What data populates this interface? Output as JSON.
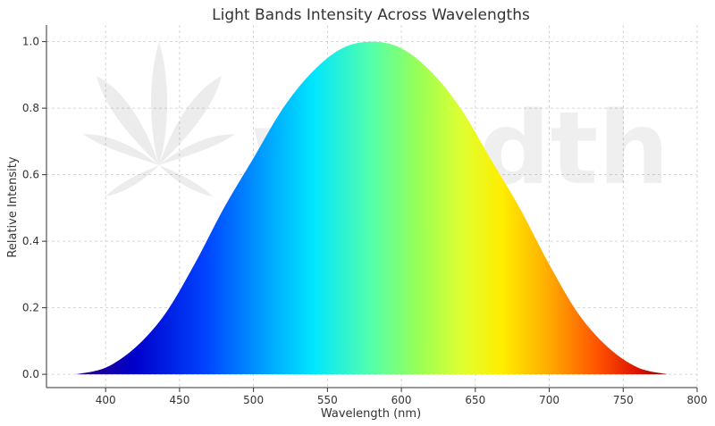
{
  "chart_data": {
    "type": "area",
    "title": "Light Bands Intensity Across Wavelengths",
    "xlabel": "Wavelength (nm)",
    "ylabel": "Relative Intensity",
    "xlim": [
      360,
      800
    ],
    "ylim": [
      -0.04,
      1.05
    ],
    "x_ticks": [
      400,
      450,
      500,
      550,
      600,
      650,
      700,
      750,
      800
    ],
    "y_ticks": [
      0.0,
      0.2,
      0.4,
      0.6,
      0.8,
      1.0
    ],
    "x_tick_labels": [
      "400",
      "450",
      "500",
      "550",
      "600",
      "650",
      "700",
      "750",
      "800"
    ],
    "y_tick_labels": [
      "0.0",
      "0.2",
      "0.4",
      "0.6",
      "0.8",
      "1.0"
    ],
    "grid": true,
    "x": [
      380,
      400,
      420,
      440,
      460,
      480,
      500,
      520,
      540,
      560,
      580,
      600,
      620,
      640,
      660,
      680,
      700,
      720,
      740,
      760,
      780
    ],
    "values": [
      0.0,
      0.02,
      0.08,
      0.18,
      0.33,
      0.5,
      0.65,
      0.8,
      0.91,
      0.98,
      1.0,
      0.98,
      0.91,
      0.8,
      0.65,
      0.5,
      0.33,
      0.18,
      0.08,
      0.02,
      0.0
    ],
    "fill": "spectral colormap by wavelength (blue → cyan → green → yellow → orange → red)"
  },
  "watermark": {
    "text": "weedth",
    "logo_icon": "cannabis-leaf-icon"
  },
  "colors": {
    "violet_blue": "#1a00cc",
    "blue": "#0040ff",
    "cyan": "#00e5ff",
    "green": "#66ff99",
    "yellow": "#ffff00",
    "orange": "#ff9900",
    "red": "#ff2200",
    "dark_red": "#990000",
    "grid": "#cccccc",
    "axis": "#333333"
  }
}
